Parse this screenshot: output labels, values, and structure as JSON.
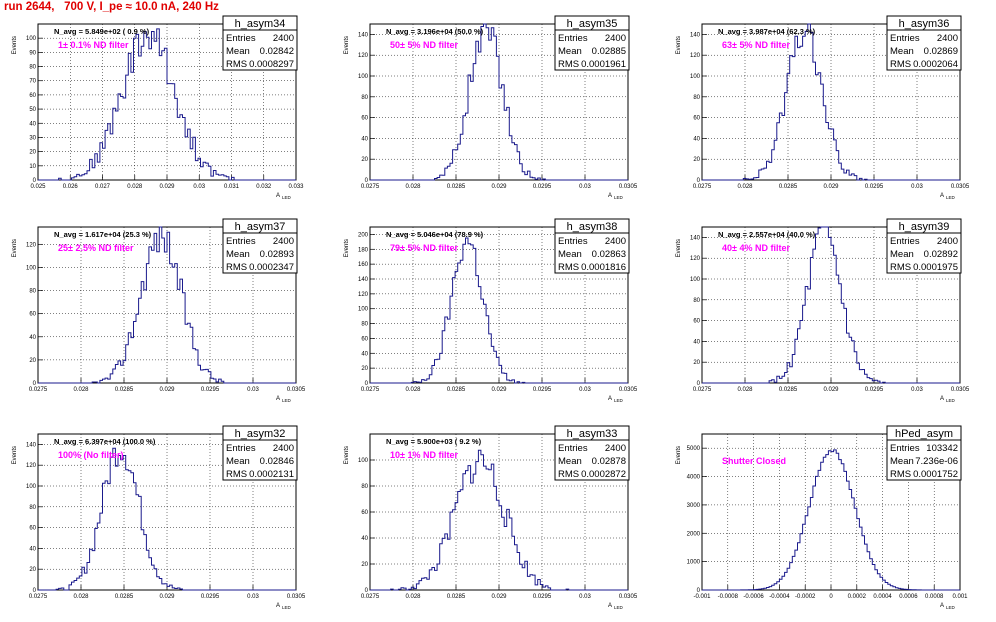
{
  "run_title": "run 2644,   700 V, I_pe ≈ 10.0 nA, 240 Hz",
  "stat_labels": {
    "entries": "Entries",
    "mean": "Mean",
    "rms": "RMS"
  },
  "y_axis_label": "Events",
  "x_axis_label": "A",
  "x_axis_subscript": "LED",
  "colors": {
    "histogram": "#1a1a8c",
    "filter_text": "#ff00ff",
    "title": "#e00000",
    "grid": "#000000"
  },
  "chart_data": [
    {
      "type": "histogram",
      "name": "h_asym34",
      "entries": "2400",
      "mean": "0.02842",
      "rms": "0.0008297",
      "navg": "N_avg = 5.849e+02 ( 0.9 %)",
      "filter": "1± 0.1% ND filter",
      "xticks": [
        "0.025",
        "0.026",
        "0.027",
        "0.028",
        "0.029",
        "0.03",
        "0.031",
        "0.032",
        "0.033"
      ],
      "xlim": [
        0.025,
        0.033
      ],
      "ylim": [
        0,
        110
      ],
      "yticks": [
        "0",
        "10",
        "20",
        "30",
        "40",
        "50",
        "60",
        "70",
        "80",
        "90",
        "100"
      ],
      "center": 0.02842,
      "sigma": 0.00083,
      "peak": 102,
      "bins": 100,
      "seed": 34
    },
    {
      "type": "histogram",
      "name": "h_asym35",
      "entries": "2400",
      "mean": "0.02885",
      "rms": "0.0001961",
      "navg": "N_avg = 3.196e+04 (50.0 %)",
      "filter": "50± 5% ND filter",
      "xticks": [
        "0.0275",
        "0.028",
        "0.0285",
        "0.029",
        "0.0295",
        "0.03",
        "0.0305"
      ],
      "xlim": [
        0.0275,
        0.0305
      ],
      "ylim": [
        0,
        150
      ],
      "yticks": [
        "0",
        "20",
        "40",
        "60",
        "80",
        "100",
        "120",
        "140"
      ],
      "center": 0.02885,
      "sigma": 0.000196,
      "peak": 145,
      "bins": 100,
      "seed": 35
    },
    {
      "type": "histogram",
      "name": "h_asym36",
      "entries": "2400",
      "mean": "0.02869",
      "rms": "0.0002064",
      "navg": "N_avg = 3.987e+04 (62.3 %)",
      "filter": "63± 5% ND filter",
      "xticks": [
        "0.0275",
        "0.028",
        "0.0285",
        "0.029",
        "0.0295",
        "0.03",
        "0.0305"
      ],
      "xlim": [
        0.0275,
        0.0305
      ],
      "ylim": [
        0,
        150
      ],
      "yticks": [
        "0",
        "20",
        "40",
        "60",
        "80",
        "100",
        "120",
        "140"
      ],
      "center": 0.02869,
      "sigma": 0.000206,
      "peak": 143,
      "bins": 100,
      "seed": 36
    },
    {
      "type": "histogram",
      "name": "h_asym37",
      "entries": "2400",
      "mean": "0.02893",
      "rms": "0.0002347",
      "navg": "N_avg = 1.617e+04 (25.3 %)",
      "filter": "25± 2.5% ND filter",
      "xticks": [
        "0.0275",
        "0.028",
        "0.0285",
        "0.029",
        "0.0295",
        "0.03",
        "0.0305"
      ],
      "xlim": [
        0.0275,
        0.0305
      ],
      "ylim": [
        0,
        135
      ],
      "yticks": [
        "0",
        "20",
        "40",
        "60",
        "80",
        "100",
        "120"
      ],
      "center": 0.02893,
      "sigma": 0.000235,
      "peak": 128,
      "bins": 100,
      "seed": 37
    },
    {
      "type": "histogram",
      "name": "h_asym38",
      "entries": "2400",
      "mean": "0.02863",
      "rms": "0.0001816",
      "navg": "N_avg = 5.046e+04 (78.9 %)",
      "filter": "79± 5% ND filter",
      "xticks": [
        "0.0275",
        "0.028",
        "0.0285",
        "0.029",
        "0.0295",
        "0.03",
        "0.0305"
      ],
      "xlim": [
        0.0275,
        0.0305
      ],
      "ylim": [
        0,
        210
      ],
      "yticks": [
        "0",
        "20",
        "40",
        "60",
        "80",
        "100",
        "120",
        "140",
        "160",
        "180",
        "200"
      ],
      "center": 0.02863,
      "sigma": 0.000182,
      "peak": 192,
      "bins": 100,
      "seed": 38
    },
    {
      "type": "histogram",
      "name": "h_asym39",
      "entries": "2400",
      "mean": "0.02892",
      "rms": "0.0001975",
      "navg": "N_avg = 2.557e+04 (40.0 %)",
      "filter": "40± 4% ND filter",
      "xticks": [
        "0.0275",
        "0.028",
        "0.0285",
        "0.029",
        "0.0295",
        "0.03",
        "0.0305"
      ],
      "xlim": [
        0.0275,
        0.0305
      ],
      "ylim": [
        0,
        150
      ],
      "yticks": [
        "0",
        "20",
        "40",
        "60",
        "80",
        "100",
        "120",
        "140"
      ],
      "center": 0.02892,
      "sigma": 0.000198,
      "peak": 143,
      "bins": 100,
      "seed": 39
    },
    {
      "type": "histogram",
      "name": "h_asym32",
      "entries": "2400",
      "mean": "0.02846",
      "rms": "0.0002131",
      "navg": "N_avg = 6.397e+04 (100.0 %)",
      "filter": "100% (No filter)",
      "xticks": [
        "0.0275",
        "0.028",
        "0.0285",
        "0.029",
        "0.0295",
        "0.03",
        "0.0305"
      ],
      "xlim": [
        0.0275,
        0.0305
      ],
      "ylim": [
        0,
        150
      ],
      "yticks": [
        "0",
        "20",
        "40",
        "60",
        "80",
        "100",
        "120",
        "140"
      ],
      "center": 0.02846,
      "sigma": 0.000213,
      "peak": 138,
      "bins": 100,
      "seed": 32
    },
    {
      "type": "histogram",
      "name": "h_asym33",
      "entries": "2400",
      "mean": "0.02878",
      "rms": "0.0002872",
      "navg": "N_avg = 5.900e+03 ( 9.2 %)",
      "filter": "10± 1% ND filter",
      "xticks": [
        "0.0275",
        "0.028",
        "0.0285",
        "0.029",
        "0.0295",
        "0.03",
        "0.0305"
      ],
      "xlim": [
        0.0275,
        0.0305
      ],
      "ylim": [
        0,
        120
      ],
      "yticks": [
        "0",
        "20",
        "40",
        "60",
        "80",
        "100"
      ],
      "center": 0.02878,
      "sigma": 0.000287,
      "peak": 100,
      "bins": 100,
      "seed": 33
    },
    {
      "type": "histogram",
      "name": "hPed_asym",
      "entries": "103342",
      "mean": "7.236e-06",
      "rms": "0.0001752",
      "navg": "",
      "filter": "Shutter Closed",
      "xticks": [
        "-0.001",
        "-0.0008",
        "-0.0006",
        "-0.0004",
        "-0.0002",
        "0",
        "0.0002",
        "0.0004",
        "0.0006",
        "0.0008",
        "0.001"
      ],
      "xlim": [
        -0.001,
        0.001
      ],
      "ylim": [
        0,
        5500
      ],
      "yticks": [
        "0",
        "1000",
        "2000",
        "3000",
        "4000",
        "5000"
      ],
      "center": 7.2e-06,
      "sigma": 0.000175,
      "peak": 4950,
      "bins": 100,
      "seed": 99,
      "smooth": true
    }
  ]
}
